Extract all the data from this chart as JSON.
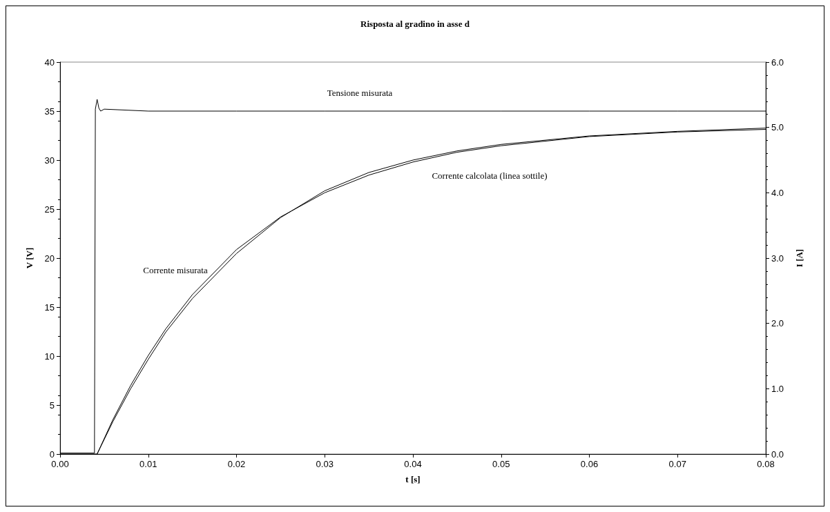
{
  "chart_data": {
    "type": "line",
    "title": "Risposta al gradino in asse d",
    "xlabel": "t [s]",
    "ylabel": "V [V]",
    "y2label": "I [A]",
    "xlim": [
      0,
      0.08
    ],
    "xticks": [
      {
        "value": 0,
        "label": "0.00"
      },
      {
        "value": 0.01,
        "label": "0.01"
      },
      {
        "value": 0.02,
        "label": "0.02"
      },
      {
        "value": 0.03,
        "label": "0.03"
      },
      {
        "value": 0.04,
        "label": "0.04"
      },
      {
        "value": 0.05,
        "label": "0.05"
      },
      {
        "value": 0.06,
        "label": "0.06"
      },
      {
        "value": 0.07,
        "label": "0.07"
      },
      {
        "value": 0.08,
        "label": "0.08"
      }
    ],
    "ylim": [
      0,
      40
    ],
    "yticks": [
      0,
      5,
      10,
      15,
      20,
      25,
      30,
      35,
      40
    ],
    "y2lim": [
      0,
      6
    ],
    "y2ticks": [
      {
        "value": 0,
        "label": "0.0"
      },
      {
        "value": 1,
        "label": "1.0"
      },
      {
        "value": 2,
        "label": "2.0"
      },
      {
        "value": 3,
        "label": "3.0"
      },
      {
        "value": 4,
        "label": "4.0"
      },
      {
        "value": 5,
        "label": "5.0"
      },
      {
        "value": 6,
        "label": "6.0"
      }
    ],
    "grid": false,
    "marker": "none",
    "line_style": "solid",
    "series": [
      {
        "color": "#000000",
        "x": [
          0,
          0.0039,
          0.004,
          0.0042,
          0.0044,
          0.0046,
          0.005,
          0.01,
          0.02,
          0.03,
          0.04,
          0.05,
          0.06,
          0.07,
          0.08
        ],
        "values": [
          0.1,
          0.1,
          35.2,
          36.2,
          35.3,
          35.0,
          35.2,
          35.0,
          35.0,
          35.0,
          35.0,
          35.0,
          35.0,
          35.0,
          35.0
        ]
      },
      {
        "color": "#000000",
        "axis": "y2",
        "x": [
          0,
          0.0042,
          0.006,
          0.008,
          0.01,
          0.012,
          0.015,
          0.02,
          0.025,
          0.03,
          0.035,
          0.04,
          0.045,
          0.05,
          0.06,
          0.07,
          0.08
        ],
        "values": [
          0,
          0,
          0.5,
          1.0,
          1.45,
          1.87,
          2.38,
          3.07,
          3.62,
          4.03,
          4.31,
          4.5,
          4.64,
          4.74,
          4.87,
          4.94,
          4.99
        ]
      },
      {
        "color": "#000000",
        "axis": "y2",
        "x": [
          0.0042,
          0.006,
          0.008,
          0.01,
          0.012,
          0.015,
          0.02,
          0.025,
          0.03,
          0.035,
          0.04,
          0.045,
          0.05,
          0.06,
          0.07,
          0.08
        ],
        "values": [
          0,
          0.53,
          1.05,
          1.51,
          1.92,
          2.44,
          3.13,
          3.63,
          4.0,
          4.27,
          4.47,
          4.62,
          4.72,
          4.86,
          4.93,
          4.97
        ]
      }
    ],
    "annotations": [
      "Tensione misurata",
      "Corrente misurata",
      "Corrente calcolata (linea sottile)"
    ]
  }
}
